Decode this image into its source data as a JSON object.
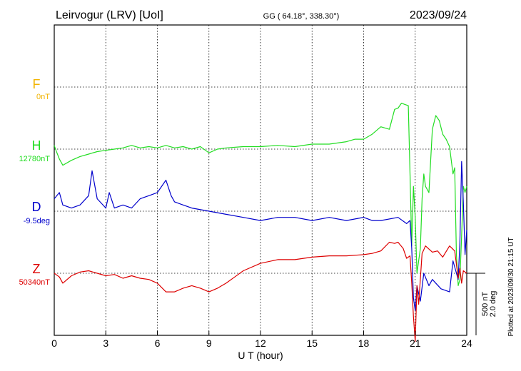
{
  "header": {
    "station": "Leirvogur (LRV)  [UoI]",
    "coords": "GG ( 64.18°, 338.30°)",
    "date": "2023/09/24"
  },
  "scale": {
    "line1": "500 nT",
    "line2": "2.0 deg"
  },
  "plotted_note": "Plotted at 2023/09/30 21:15 UT",
  "colors": {
    "F": "#f2b400",
    "H": "#22dd22",
    "D": "#0000cc",
    "Z": "#dd0000"
  },
  "chart_data": {
    "type": "line",
    "xlabel": "U T (hour)",
    "xlim": [
      0,
      24
    ],
    "xticks": [
      "0",
      "3",
      "6",
      "9",
      "12",
      "15",
      "18",
      "21",
      "24"
    ],
    "scale_nT_per_division": 500,
    "scale_deg_per_division": 2.0,
    "channels": [
      {
        "letter": "F",
        "base": "0nT"
      },
      {
        "letter": "H",
        "base": "12780nT"
      },
      {
        "letter": "D",
        "base": "-9.5deg"
      },
      {
        "letter": "Z",
        "base": "50340nT"
      }
    ],
    "series": [
      {
        "name": "H",
        "x": [
          0,
          0.1,
          0.3,
          0.5,
          1,
          1.5,
          2,
          2.5,
          3,
          3.5,
          4,
          4.5,
          5,
          5.5,
          6,
          6.5,
          7,
          7.5,
          8,
          8.5,
          9,
          9.5,
          10,
          11,
          12,
          13,
          14,
          15,
          16,
          17,
          17.5,
          18,
          18.5,
          19,
          19.5,
          19.8,
          20,
          20.2,
          20.4,
          20.6,
          20.7,
          20.8,
          20.9,
          21,
          21.1,
          21.2,
          21.3,
          21.4,
          21.5,
          21.6,
          21.8,
          22,
          22.2,
          22.4,
          22.6,
          22.8,
          23,
          23.2,
          23.3,
          23.4,
          23.5,
          23.6,
          23.7,
          23.8,
          23.9,
          24
        ],
        "values": [
          30,
          -10,
          -80,
          -130,
          -90,
          -60,
          -40,
          -20,
          -10,
          0,
          10,
          30,
          10,
          20,
          10,
          30,
          10,
          20,
          0,
          20,
          -30,
          0,
          10,
          20,
          20,
          30,
          20,
          40,
          40,
          60,
          80,
          80,
          120,
          180,
          160,
          320,
          330,
          370,
          360,
          350,
          -200,
          -780,
          -300,
          -550,
          -1000,
          -900,
          -800,
          -400,
          -200,
          -300,
          -350,
          160,
          270,
          230,
          120,
          80,
          20,
          -200,
          -150,
          -850,
          -1100,
          -1050,
          -700,
          -300,
          -350,
          -300
        ]
      },
      {
        "name": "D",
        "x": [
          0,
          0.3,
          0.5,
          1,
          1.5,
          2,
          2.2,
          2.5,
          3,
          3.2,
          3.5,
          4,
          4.5,
          5,
          5.5,
          6,
          6.5,
          6.8,
          7,
          7.5,
          8,
          9,
          10,
          11,
          12,
          13,
          14,
          15,
          16,
          17,
          18,
          18.5,
          19,
          20,
          20.5,
          20.7,
          20.8,
          20.9,
          21,
          21.1,
          21.3,
          21.5,
          21.8,
          22,
          22.5,
          23,
          23.2,
          23.5,
          23.6,
          23.7,
          23.8,
          23.9,
          24
        ],
        "values": [
          0.4,
          0.6,
          0.2,
          0.1,
          0.2,
          0.5,
          1.3,
          0.4,
          0.1,
          0.6,
          0.1,
          0.2,
          0.1,
          0.4,
          0.5,
          0.6,
          1.0,
          0.5,
          0.3,
          0.2,
          0.1,
          0.0,
          -0.1,
          -0.2,
          -0.3,
          -0.2,
          -0.2,
          -0.3,
          -0.2,
          -0.3,
          -0.2,
          -0.3,
          -0.3,
          -0.2,
          -0.4,
          -0.3,
          -1.2,
          -2.8,
          -3.2,
          -2.4,
          -2.9,
          -2.0,
          -2.4,
          -2.2,
          -2.5,
          -2.6,
          -1.6,
          -2.2,
          -1.0,
          1.6,
          0.3,
          -1.4,
          -0.6
        ]
      },
      {
        "name": "Z",
        "x": [
          0,
          0.3,
          0.5,
          1,
          1.5,
          2,
          2.5,
          3,
          3.5,
          4,
          4.5,
          5,
          5.5,
          6,
          6.5,
          7,
          7.5,
          8,
          8.5,
          9,
          9.5,
          10,
          10.5,
          11,
          12,
          13,
          14,
          15,
          16,
          17,
          18,
          18.5,
          19,
          19.5,
          19.8,
          20,
          20.3,
          20.5,
          20.7,
          20.8,
          20.9,
          21,
          21.1,
          21.2,
          21.4,
          21.6,
          22,
          22.3,
          22.6,
          23,
          23.3,
          23.5,
          23.6,
          23.7,
          23.8,
          24
        ],
        "values": [
          0,
          -30,
          -80,
          -20,
          10,
          20,
          0,
          -20,
          -10,
          -40,
          -20,
          -40,
          -50,
          -80,
          -150,
          -150,
          -120,
          -100,
          -120,
          -150,
          -120,
          -80,
          -30,
          20,
          80,
          110,
          110,
          130,
          140,
          140,
          150,
          160,
          180,
          250,
          240,
          250,
          200,
          120,
          140,
          -80,
          -350,
          -550,
          -100,
          -250,
          160,
          220,
          170,
          180,
          130,
          220,
          180,
          -40,
          40,
          -80,
          20,
          0
        ]
      }
    ]
  }
}
